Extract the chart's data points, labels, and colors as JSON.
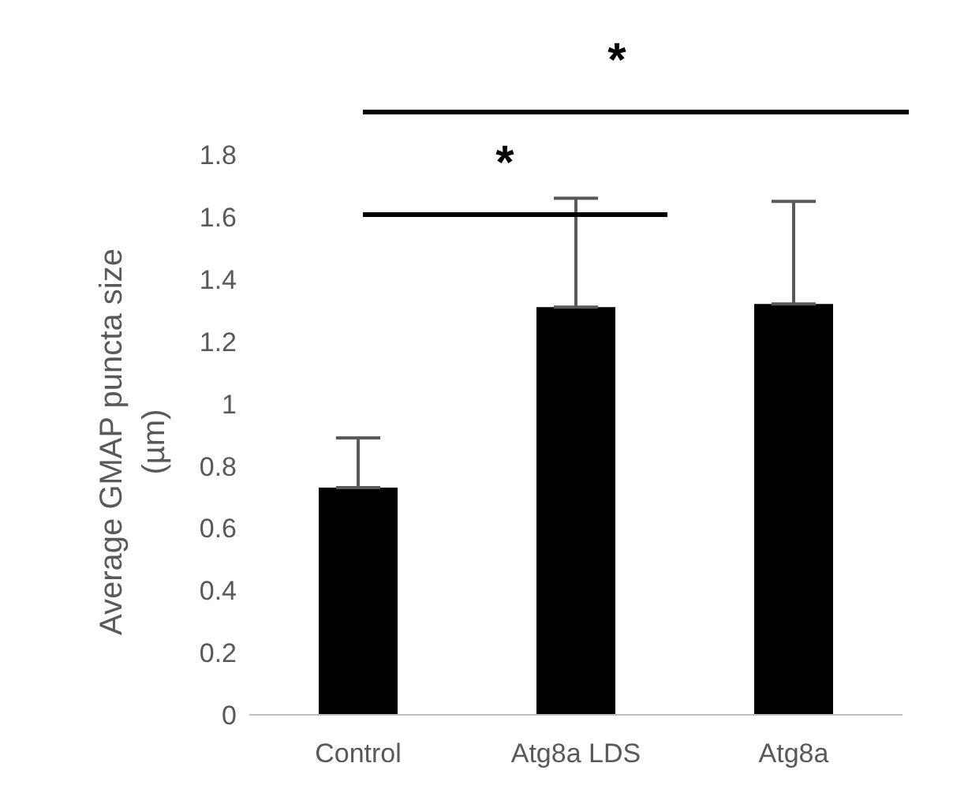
{
  "chart_data": {
    "type": "bar",
    "ylabel": "Average GMAP puncta size (µm)",
    "categories": [
      "Control",
      "Atg8a LDS",
      "Atg8a"
    ],
    "values": [
      0.73,
      1.31,
      1.32
    ],
    "errors": [
      [
        0.73,
        0.89
      ],
      [
        1.31,
        1.66
      ],
      [
        1.32,
        1.65
      ]
    ],
    "color": "#000000",
    "ylim": [
      0,
      1.8
    ],
    "yticks": [
      0,
      0.2,
      0.4,
      0.6,
      0.8,
      1,
      1.2,
      1.4,
      1.6,
      1.8
    ],
    "grid": false,
    "annotations": [
      "*",
      "*"
    ]
  }
}
